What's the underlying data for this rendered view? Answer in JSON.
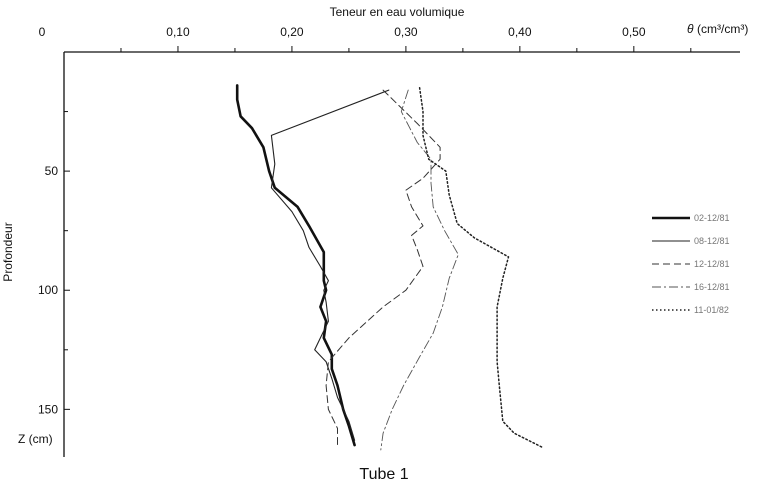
{
  "chart_data": {
    "type": "line",
    "title": "Tube 1",
    "xlabel": "Teneur en eau volumique",
    "x_unit_symbol": "θ",
    "x_unit": "(cm³/cm³)",
    "ylabel": "Profondeur",
    "y_unit_label": "Z (cm)",
    "xlim": [
      0,
      0.58
    ],
    "ylim": [
      0,
      170
    ],
    "y_inverted": true,
    "x_ticks": [
      {
        "value": 0,
        "label": "0"
      },
      {
        "value": 0.1,
        "label": "0,10"
      },
      {
        "value": 0.2,
        "label": "0,20"
      },
      {
        "value": 0.3,
        "label": "0,30"
      },
      {
        "value": 0.4,
        "label": "0,40"
      },
      {
        "value": 0.5,
        "label": "0,50"
      }
    ],
    "x_minor_ticks": [
      0.05,
      0.15,
      0.25,
      0.35,
      0.45,
      0.55
    ],
    "y_ticks": [
      {
        "value": 50,
        "label": "50"
      },
      {
        "value": 100,
        "label": "100"
      },
      {
        "value": 150,
        "label": "150"
      }
    ],
    "y_minor_ticks": [
      25,
      75,
      125
    ],
    "legend_position": "right",
    "series": [
      {
        "name": "02-12/81",
        "style": "thick-solid",
        "points": [
          [
            0.152,
            14
          ],
          [
            0.152,
            20
          ],
          [
            0.155,
            27
          ],
          [
            0.165,
            32
          ],
          [
            0.175,
            40
          ],
          [
            0.18,
            50
          ],
          [
            0.185,
            57
          ],
          [
            0.205,
            65
          ],
          [
            0.215,
            73
          ],
          [
            0.228,
            84
          ],
          [
            0.228,
            90
          ],
          [
            0.228,
            96
          ],
          [
            0.23,
            100
          ],
          [
            0.225,
            107
          ],
          [
            0.23,
            113
          ],
          [
            0.228,
            120
          ],
          [
            0.235,
            127
          ],
          [
            0.235,
            133
          ],
          [
            0.24,
            140
          ],
          [
            0.245,
            150
          ],
          [
            0.25,
            157
          ],
          [
            0.255,
            165
          ]
        ]
      },
      {
        "name": "08-12/81",
        "style": "solid",
        "points": [
          [
            0.285,
            16
          ],
          [
            0.182,
            35
          ],
          [
            0.185,
            47
          ],
          [
            0.182,
            57
          ],
          [
            0.2,
            67
          ],
          [
            0.21,
            75
          ],
          [
            0.215,
            82
          ],
          [
            0.225,
            90
          ],
          [
            0.232,
            96
          ],
          [
            0.228,
            100
          ],
          [
            0.23,
            105
          ],
          [
            0.232,
            113
          ],
          [
            0.225,
            120
          ],
          [
            0.22,
            125
          ],
          [
            0.23,
            130
          ],
          [
            0.235,
            137
          ],
          [
            0.24,
            145
          ],
          [
            0.25,
            155
          ],
          [
            0.255,
            163
          ]
        ]
      },
      {
        "name": "12-12/81",
        "style": "dashed",
        "points": [
          [
            0.28,
            16
          ],
          [
            0.31,
            30
          ],
          [
            0.33,
            40
          ],
          [
            0.33,
            45
          ],
          [
            0.315,
            53
          ],
          [
            0.3,
            58
          ],
          [
            0.305,
            65
          ],
          [
            0.315,
            73
          ],
          [
            0.305,
            77
          ],
          [
            0.31,
            83
          ],
          [
            0.315,
            90
          ],
          [
            0.3,
            100
          ],
          [
            0.28,
            107
          ],
          [
            0.25,
            120
          ],
          [
            0.232,
            130
          ],
          [
            0.23,
            140
          ],
          [
            0.232,
            150
          ],
          [
            0.24,
            158
          ],
          [
            0.24,
            165
          ]
        ]
      },
      {
        "name": "16-12/81",
        "style": "dash-dot",
        "points": [
          [
            0.302,
            16
          ],
          [
            0.296,
            25
          ],
          [
            0.31,
            38
          ],
          [
            0.322,
            45
          ],
          [
            0.322,
            55
          ],
          [
            0.324,
            65
          ],
          [
            0.334,
            75
          ],
          [
            0.346,
            85
          ],
          [
            0.338,
            95
          ],
          [
            0.332,
            107
          ],
          [
            0.324,
            118
          ],
          [
            0.312,
            128
          ],
          [
            0.298,
            140
          ],
          [
            0.288,
            150
          ],
          [
            0.28,
            160
          ],
          [
            0.278,
            167
          ]
        ]
      },
      {
        "name": "11-01/82",
        "style": "dotted",
        "points": [
          [
            0.312,
            15
          ],
          [
            0.315,
            25
          ],
          [
            0.315,
            35
          ],
          [
            0.32,
            45
          ],
          [
            0.335,
            50
          ],
          [
            0.338,
            60
          ],
          [
            0.345,
            72
          ],
          [
            0.36,
            78
          ],
          [
            0.39,
            86
          ],
          [
            0.385,
            95
          ],
          [
            0.38,
            107
          ],
          [
            0.38,
            120
          ],
          [
            0.38,
            130
          ],
          [
            0.382,
            140
          ],
          [
            0.385,
            155
          ],
          [
            0.395,
            160
          ],
          [
            0.42,
            166
          ]
        ]
      }
    ]
  }
}
